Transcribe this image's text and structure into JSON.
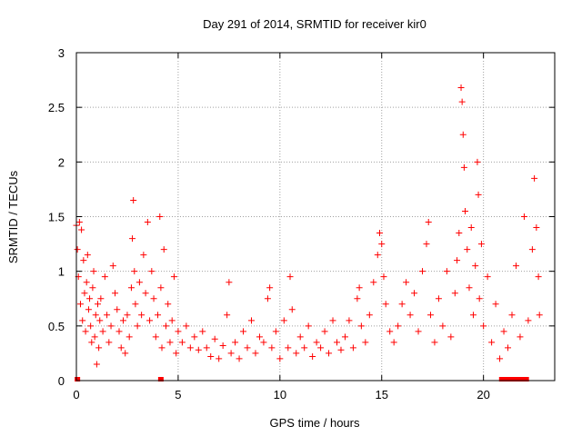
{
  "chart_data": {
    "type": "scatter",
    "title": "Day 291 of 2014, SRMTID for receiver kir0",
    "xlabel": "GPS time / hours",
    "ylabel": "SRMTID / TECUs",
    "xlim": [
      0,
      23.5
    ],
    "ylim": [
      0,
      3
    ],
    "xticks": [
      0,
      5,
      10,
      15,
      20
    ],
    "xtick_labels": [
      "0",
      "5",
      "10",
      "15",
      "20"
    ],
    "yticks": [
      0,
      0.5,
      1,
      1.5,
      2,
      2.5,
      3
    ],
    "ytick_labels": [
      "0",
      "0.5",
      "1",
      "1.5",
      "2",
      "2.5",
      "3"
    ],
    "grid": true,
    "marker": "+",
    "series": [
      {
        "name": "kir0",
        "color": "#ff0000",
        "points": [
          [
            0.0,
            1.42
          ],
          [
            0.05,
            1.2
          ],
          [
            0.1,
            0.95
          ],
          [
            0.15,
            1.45
          ],
          [
            0.2,
            0.7
          ],
          [
            0.25,
            1.38
          ],
          [
            0.3,
            0.55
          ],
          [
            0.35,
            1.1
          ],
          [
            0.4,
            0.8
          ],
          [
            0.45,
            0.45
          ],
          [
            0.5,
            0.9
          ],
          [
            0.55,
            1.15
          ],
          [
            0.6,
            0.65
          ],
          [
            0.65,
            0.75
          ],
          [
            0.7,
            0.5
          ],
          [
            0.75,
            0.35
          ],
          [
            0.8,
            0.85
          ],
          [
            0.85,
            1.0
          ],
          [
            0.9,
            0.4
          ],
          [
            0.95,
            0.6
          ],
          [
            1.0,
            0.15
          ],
          [
            1.05,
            0.7
          ],
          [
            1.1,
            0.3
          ],
          [
            1.15,
            0.55
          ],
          [
            1.2,
            0.75
          ],
          [
            1.3,
            0.45
          ],
          [
            1.4,
            0.95
          ],
          [
            1.5,
            0.6
          ],
          [
            1.6,
            0.35
          ],
          [
            1.7,
            0.5
          ],
          [
            1.8,
            1.05
          ],
          [
            1.9,
            0.8
          ],
          [
            2.0,
            0.65
          ],
          [
            2.1,
            0.45
          ],
          [
            2.2,
            0.3
          ],
          [
            2.3,
            0.55
          ],
          [
            2.4,
            0.25
          ],
          [
            2.5,
            0.6
          ],
          [
            2.6,
            0.4
          ],
          [
            2.7,
            0.85
          ],
          [
            2.75,
            1.3
          ],
          [
            2.8,
            1.65
          ],
          [
            2.85,
            1.0
          ],
          [
            2.9,
            0.7
          ],
          [
            3.0,
            0.5
          ],
          [
            3.1,
            0.9
          ],
          [
            3.2,
            0.6
          ],
          [
            3.3,
            1.15
          ],
          [
            3.4,
            0.8
          ],
          [
            3.5,
            1.45
          ],
          [
            3.6,
            0.55
          ],
          [
            3.7,
            1.0
          ],
          [
            3.8,
            0.75
          ],
          [
            3.9,
            0.4
          ],
          [
            4.0,
            0.6
          ],
          [
            4.1,
            1.5
          ],
          [
            4.15,
            0.85
          ],
          [
            4.2,
            0.3
          ],
          [
            4.3,
            1.2
          ],
          [
            4.4,
            0.5
          ],
          [
            4.5,
            0.7
          ],
          [
            4.6,
            0.35
          ],
          [
            4.7,
            0.55
          ],
          [
            4.8,
            0.95
          ],
          [
            4.9,
            0.25
          ],
          [
            5.0,
            0.45
          ],
          [
            5.2,
            0.35
          ],
          [
            5.4,
            0.5
          ],
          [
            5.6,
            0.3
          ],
          [
            5.8,
            0.4
          ],
          [
            6.0,
            0.28
          ],
          [
            6.2,
            0.45
          ],
          [
            6.4,
            0.3
          ],
          [
            6.6,
            0.22
          ],
          [
            6.8,
            0.38
          ],
          [
            7.0,
            0.2
          ],
          [
            7.2,
            0.32
          ],
          [
            7.4,
            0.6
          ],
          [
            7.5,
            0.9
          ],
          [
            7.6,
            0.25
          ],
          [
            7.8,
            0.35
          ],
          [
            8.0,
            0.2
          ],
          [
            8.2,
            0.45
          ],
          [
            8.4,
            0.3
          ],
          [
            8.6,
            0.55
          ],
          [
            8.8,
            0.25
          ],
          [
            9.0,
            0.4
          ],
          [
            9.2,
            0.35
          ],
          [
            9.4,
            0.75
          ],
          [
            9.5,
            0.85
          ],
          [
            9.6,
            0.3
          ],
          [
            9.8,
            0.45
          ],
          [
            10.0,
            0.2
          ],
          [
            10.2,
            0.55
          ],
          [
            10.4,
            0.3
          ],
          [
            10.5,
            0.95
          ],
          [
            10.6,
            0.65
          ],
          [
            10.8,
            0.25
          ],
          [
            11.0,
            0.4
          ],
          [
            11.2,
            0.3
          ],
          [
            11.4,
            0.5
          ],
          [
            11.6,
            0.22
          ],
          [
            11.8,
            0.35
          ],
          [
            12.0,
            0.3
          ],
          [
            12.2,
            0.45
          ],
          [
            12.4,
            0.25
          ],
          [
            12.6,
            0.55
          ],
          [
            12.8,
            0.35
          ],
          [
            13.0,
            0.28
          ],
          [
            13.2,
            0.4
          ],
          [
            13.4,
            0.55
          ],
          [
            13.6,
            0.3
          ],
          [
            13.8,
            0.75
          ],
          [
            13.9,
            0.85
          ],
          [
            14.0,
            0.5
          ],
          [
            14.2,
            0.35
          ],
          [
            14.4,
            0.6
          ],
          [
            14.6,
            0.9
          ],
          [
            14.8,
            1.15
          ],
          [
            14.9,
            1.35
          ],
          [
            15.0,
            1.25
          ],
          [
            15.1,
            0.95
          ],
          [
            15.2,
            0.7
          ],
          [
            15.4,
            0.45
          ],
          [
            15.6,
            0.35
          ],
          [
            15.8,
            0.5
          ],
          [
            16.0,
            0.7
          ],
          [
            16.2,
            0.9
          ],
          [
            16.4,
            0.6
          ],
          [
            16.6,
            0.8
          ],
          [
            16.8,
            0.45
          ],
          [
            17.0,
            1.0
          ],
          [
            17.2,
            1.25
          ],
          [
            17.3,
            1.45
          ],
          [
            17.4,
            0.6
          ],
          [
            17.6,
            0.35
          ],
          [
            17.8,
            0.75
          ],
          [
            18.0,
            0.5
          ],
          [
            18.2,
            1.0
          ],
          [
            18.4,
            0.4
          ],
          [
            18.6,
            0.8
          ],
          [
            18.7,
            1.1
          ],
          [
            18.8,
            1.35
          ],
          [
            18.9,
            2.68
          ],
          [
            18.95,
            2.55
          ],
          [
            19.0,
            2.25
          ],
          [
            19.05,
            1.95
          ],
          [
            19.1,
            1.55
          ],
          [
            19.2,
            1.2
          ],
          [
            19.3,
            0.85
          ],
          [
            19.4,
            1.4
          ],
          [
            19.5,
            0.6
          ],
          [
            19.6,
            1.05
          ],
          [
            19.7,
            2.0
          ],
          [
            19.75,
            1.7
          ],
          [
            19.8,
            0.75
          ],
          [
            19.9,
            1.25
          ],
          [
            20.0,
            0.5
          ],
          [
            20.2,
            0.95
          ],
          [
            20.4,
            0.35
          ],
          [
            20.6,
            0.7
          ],
          [
            20.8,
            0.2
          ],
          [
            21.0,
            0.45
          ],
          [
            21.2,
            0.3
          ],
          [
            21.4,
            0.6
          ],
          [
            21.6,
            1.05
          ],
          [
            21.8,
            0.4
          ],
          [
            22.0,
            1.5
          ],
          [
            22.2,
            0.55
          ],
          [
            22.4,
            1.2
          ],
          [
            22.5,
            1.85
          ],
          [
            22.6,
            1.4
          ],
          [
            22.7,
            0.95
          ],
          [
            22.75,
            0.6
          ]
        ]
      }
    ],
    "zero_markers_x": [
      0.05,
      4.15,
      20.9,
      21.1,
      21.3,
      21.5,
      21.7,
      21.9,
      22.1
    ]
  }
}
